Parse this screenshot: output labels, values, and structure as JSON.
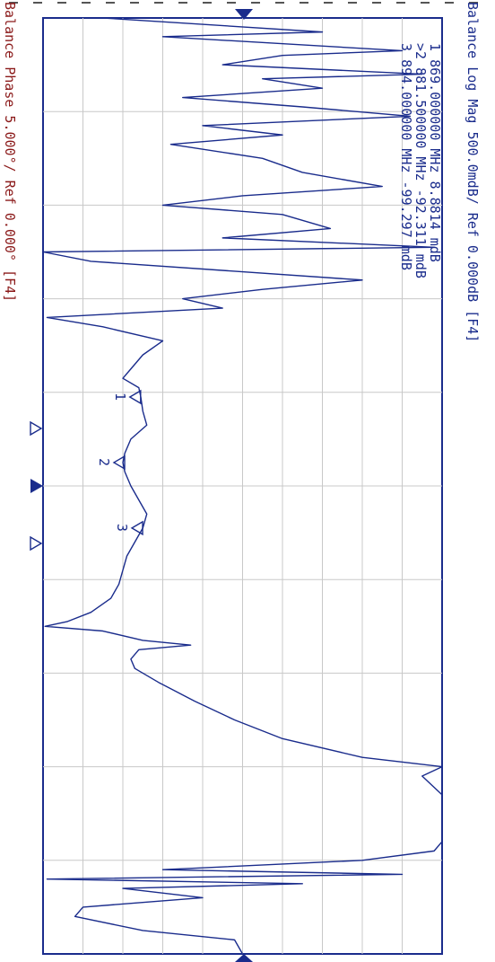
{
  "header": {
    "trace1_label": "Balance Log Mag 500.0mdB/ Ref 0.000dB [F4]",
    "trace2_label": "Balance Phase 5.000°/ Ref 0.000° [F4]"
  },
  "markers": [
    {
      "id": "1",
      "prefix": " ",
      "freq": "869.000000 MHz",
      "value": "8.8814 mdB"
    },
    {
      "id": "2",
      "prefix": ">",
      "freq": "881.500000 MHz",
      "value": "-92.311 mdB"
    },
    {
      "id": "3",
      "prefix": " ",
      "freq": "894.000000 MHz",
      "value": "-99.297 mdB"
    }
  ],
  "colors": {
    "trace1": "#1a2c8c",
    "trace2": "#8b1a1a",
    "grid": "#c8c8c8",
    "frame": "#1a2c8c"
  },
  "chart_data": {
    "type": "line",
    "x_divisions": 10,
    "y_divisions": 10,
    "grid": true,
    "orientation": "rotated-90-clockwise",
    "reference_marker": "top-center",
    "markers": [
      {
        "label": "1",
        "x": 4.05,
        "y": 2.4
      },
      {
        "label": "2",
        "x": 4.75,
        "y": 2.0
      },
      {
        "label": "3",
        "x": 5.45,
        "y": 2.45
      }
    ],
    "series": [
      {
        "name": "Balance Log Mag",
        "color": "#1a2c8c",
        "points": [
          [
            0.0,
            1.5
          ],
          [
            0.15,
            7.0
          ],
          [
            0.2,
            3.0
          ],
          [
            0.35,
            9.0
          ],
          [
            0.4,
            6.0
          ],
          [
            0.5,
            4.5
          ],
          [
            0.6,
            9.5
          ],
          [
            0.65,
            5.5
          ],
          [
            0.75,
            7.0
          ],
          [
            0.85,
            3.5
          ],
          [
            0.95,
            6.5
          ],
          [
            1.05,
            9.2
          ],
          [
            1.15,
            4.0
          ],
          [
            1.25,
            6.0
          ],
          [
            1.35,
            3.2
          ],
          [
            1.5,
            5.5
          ],
          [
            1.65,
            6.5
          ],
          [
            1.8,
            8.5
          ],
          [
            1.9,
            5.0
          ],
          [
            2.0,
            3.0
          ],
          [
            2.1,
            6.0
          ],
          [
            2.25,
            7.2
          ],
          [
            2.35,
            4.5
          ],
          [
            2.45,
            9.8
          ],
          [
            2.5,
            0.0
          ],
          [
            2.6,
            1.2
          ],
          [
            2.8,
            8.0
          ],
          [
            2.9,
            5.5
          ],
          [
            3.0,
            3.5
          ],
          [
            3.1,
            4.5
          ],
          [
            3.2,
            0.1
          ],
          [
            3.3,
            1.5
          ],
          [
            3.45,
            3.0
          ],
          [
            3.6,
            2.5
          ],
          [
            3.75,
            2.2
          ],
          [
            3.85,
            2.0
          ],
          [
            3.95,
            2.4
          ],
          [
            4.05,
            2.45
          ],
          [
            4.2,
            2.5
          ],
          [
            4.35,
            2.6
          ],
          [
            4.5,
            2.2
          ],
          [
            4.65,
            2.05
          ],
          [
            4.75,
            2.0
          ],
          [
            4.85,
            2.05
          ],
          [
            5.0,
            2.2
          ],
          [
            5.15,
            2.4
          ],
          [
            5.3,
            2.6
          ],
          [
            5.45,
            2.5
          ],
          [
            5.6,
            2.3
          ],
          [
            5.75,
            2.1
          ],
          [
            5.9,
            2.0
          ],
          [
            6.05,
            1.9
          ],
          [
            6.2,
            1.7
          ],
          [
            6.35,
            1.2
          ],
          [
            6.45,
            0.6
          ],
          [
            6.5,
            0.05
          ],
          [
            6.55,
            1.5
          ],
          [
            6.65,
            2.5
          ],
          [
            6.7,
            3.7
          ],
          [
            6.75,
            2.4
          ],
          [
            6.85,
            2.2
          ],
          [
            6.95,
            2.3
          ],
          [
            7.1,
            2.9
          ],
          [
            7.3,
            3.8
          ],
          [
            7.5,
            4.8
          ],
          [
            7.7,
            6.0
          ],
          [
            7.9,
            8.0
          ],
          [
            8.0,
            10.0
          ],
          [
            8.1,
            9.5
          ],
          [
            8.3,
            10.0
          ],
          [
            8.8,
            10.0
          ],
          [
            8.9,
            9.8
          ],
          [
            9.0,
            8.0
          ],
          [
            9.1,
            3.0
          ],
          [
            9.15,
            9.0
          ],
          [
            9.2,
            0.1
          ],
          [
            9.25,
            6.5
          ],
          [
            9.3,
            2.0
          ],
          [
            9.4,
            4.0
          ],
          [
            9.5,
            1.0
          ],
          [
            9.6,
            0.8
          ],
          [
            9.75,
            2.5
          ],
          [
            9.85,
            4.8
          ],
          [
            10.0,
            5.0
          ]
        ]
      }
    ]
  }
}
